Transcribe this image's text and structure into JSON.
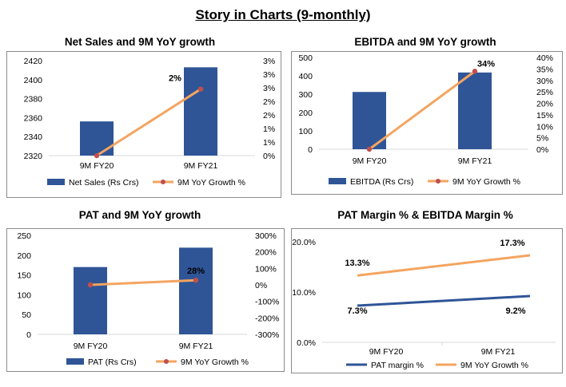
{
  "page": {
    "title": "Story in Charts (9-monthly)"
  },
  "colors": {
    "bar": "#2f5597",
    "growth_line": "#f4a460",
    "growth_marker": "#c0504d",
    "pat_margin_line": "#2f5597",
    "axis": "#d9d9d9",
    "border": "#8c8c8c"
  },
  "chart_data": [
    {
      "id": "net-sales",
      "type": "bar",
      "title": "Net Sales and 9M YoY growth",
      "categories": [
        "9M FY20",
        "9M FY21"
      ],
      "series": [
        {
          "name": "Net Sales (Rs Crs)",
          "kind": "bar",
          "axis": "left",
          "values": [
            2356,
            2413
          ]
        },
        {
          "name": "9M YoY Growth %",
          "kind": "line",
          "axis": "right",
          "values": [
            0,
            2.45
          ],
          "labels": [
            "",
            "2%"
          ]
        }
      ],
      "ylim": [
        2320,
        2420
      ],
      "yticks": [
        "2320",
        "2340",
        "2360",
        "2380",
        "2400",
        "2420"
      ],
      "y2lim": [
        0,
        3.5
      ],
      "y2ticks": [
        "0%",
        "1%",
        "1%",
        "2%",
        "2%",
        "3%",
        "3%",
        "3%"
      ],
      "legend": "bottom"
    },
    {
      "id": "ebitda",
      "type": "bar",
      "title": "EBITDA and 9M YoY growth",
      "categories": [
        "9M FY20",
        "9M FY21"
      ],
      "series": [
        {
          "name": "EBITDA (Rs Crs)",
          "kind": "bar",
          "axis": "left",
          "values": [
            312,
            418
          ]
        },
        {
          "name": "9M YoY Growth %",
          "kind": "line",
          "axis": "right",
          "values": [
            0,
            34
          ],
          "labels": [
            "",
            "34%"
          ]
        }
      ],
      "ylim": [
        0,
        500
      ],
      "yticks": [
        "0",
        "100",
        "200",
        "300",
        "400",
        "500"
      ],
      "y2lim": [
        0,
        40
      ],
      "y2ticks": [
        "0%",
        "5%",
        "10%",
        "15%",
        "20%",
        "25%",
        "30%",
        "35%",
        "40%"
      ],
      "legend": "bottom"
    },
    {
      "id": "pat",
      "type": "bar",
      "title": "PAT and 9M YoY growth",
      "categories": [
        "9M FY20",
        "9M FY21"
      ],
      "series": [
        {
          "name": "PAT (Rs Crs)",
          "kind": "bar",
          "axis": "left",
          "values": [
            170,
            219
          ]
        },
        {
          "name": "9M YoY Growth %",
          "kind": "line",
          "axis": "right",
          "values": [
            0,
            28
          ],
          "labels": [
            "",
            "28%"
          ]
        }
      ],
      "ylim": [
        0,
        250
      ],
      "yticks": [
        "0",
        "50",
        "100",
        "150",
        "200",
        "250"
      ],
      "y2lim": [
        -300,
        300
      ],
      "y2ticks": [
        "-300%",
        "-200%",
        "-100%",
        "0%",
        "100%",
        "200%",
        "300%"
      ],
      "legend": "bottom"
    },
    {
      "id": "margins",
      "type": "line",
      "title": "PAT Margin % & EBITDA Margin %",
      "categories": [
        "9M FY20",
        "9M FY21"
      ],
      "series": [
        {
          "name": "PAT margin %",
          "kind": "line",
          "values": [
            7.3,
            9.2
          ],
          "labels": [
            "7.3%",
            "9.2%"
          ]
        },
        {
          "name": "9M YoY Growth %",
          "kind": "line",
          "values": [
            13.3,
            17.3
          ],
          "labels": [
            "13.3%",
            "17.3%"
          ]
        }
      ],
      "ylim": [
        0,
        20
      ],
      "yticks": [
        "0.0%",
        "10.0%",
        "20.0%"
      ],
      "legend": "bottom"
    }
  ]
}
